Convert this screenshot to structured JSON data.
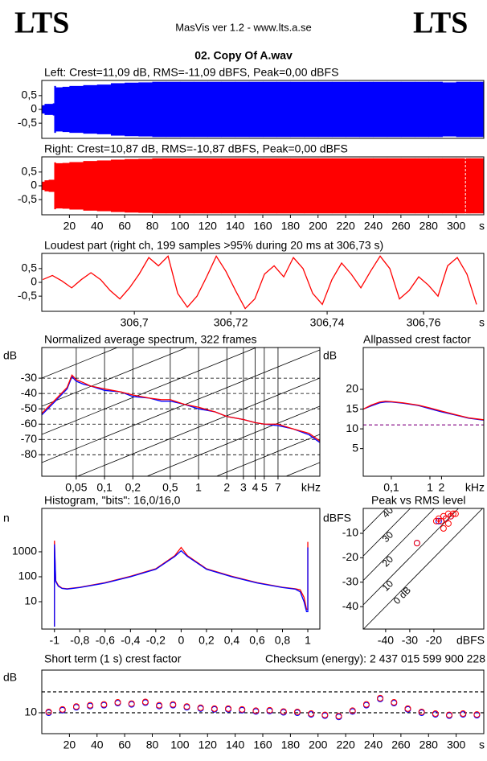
{
  "header": {
    "logo_left": "LTS",
    "logo_right": "LTS",
    "version": "MasVis ver 1.2 - www.lts.a.se",
    "file": "02. Copy Of A.wav"
  },
  "chart_data": [
    {
      "type": "waveform",
      "title": "Left: Crest=11,09 dB, RMS=-11,09 dBFS, Peak=0,00 dBFS",
      "color": "#0000ff",
      "x": [
        0,
        2,
        5,
        8,
        9,
        10,
        15,
        20,
        30,
        40,
        50,
        60,
        70,
        80,
        90,
        100,
        110,
        120,
        130,
        140,
        150,
        160,
        170,
        180,
        190,
        200,
        210,
        220,
        230,
        240,
        250,
        260,
        270,
        280,
        290,
        300,
        310
      ],
      "values": [
        0.15,
        0.2,
        0.2,
        0.22,
        0.85,
        0.8,
        0.82,
        0.85,
        0.88,
        0.9,
        0.95,
        0.97,
        0.98,
        1,
        1,
        1,
        1,
        1,
        1,
        1,
        1,
        1,
        1,
        1,
        1,
        1,
        1,
        1,
        1,
        1,
        1,
        1,
        1,
        1,
        0.98,
        1,
        1
      ],
      "xlim": [
        0,
        320
      ],
      "ylim": [
        -1.05,
        1.05
      ],
      "yticks": [
        {
          "value": 0.5,
          "label": "0,5"
        },
        0,
        {
          "value": -0.5,
          "label": "-0,5"
        }
      ]
    },
    {
      "type": "waveform",
      "title": "Right: Crest=10,87 dB, RMS=-10,87 dBFS, Peak=0,00 dBFS",
      "color": "#ff0000",
      "x": [
        0,
        2,
        5,
        8,
        9,
        10,
        15,
        20,
        30,
        40,
        50,
        60,
        70,
        80,
        90,
        100,
        110,
        120,
        130,
        140,
        150,
        160,
        170,
        180,
        190,
        200,
        210,
        220,
        230,
        240,
        250,
        260,
        270,
        280,
        290,
        300,
        310
      ],
      "values": [
        0.15,
        0.2,
        0.22,
        0.22,
        0.85,
        0.82,
        0.83,
        0.86,
        0.9,
        0.92,
        0.95,
        0.97,
        0.98,
        1,
        1,
        1,
        1,
        1,
        1,
        1,
        1,
        1,
        1,
        1,
        1,
        1,
        1,
        1,
        1,
        1,
        1,
        1,
        1,
        1,
        1,
        1,
        1
      ],
      "marker": 306.73,
      "xlim": [
        0,
        320
      ],
      "ylim": [
        -1.05,
        1.05
      ],
      "yticks": [
        {
          "value": 0.5,
          "label": "0,5"
        },
        0,
        {
          "value": -0.5,
          "label": "-0,5"
        }
      ],
      "xticks": [
        20,
        40,
        60,
        80,
        100,
        120,
        140,
        160,
        180,
        200,
        220,
        240,
        260,
        280,
        300
      ],
      "xlabel": "s"
    },
    {
      "type": "line",
      "title": "Loudest part (right ch, 199 samples >95% during 20 ms at 306,73 s)",
      "x": [
        306.681,
        306.683,
        306.685,
        306.687,
        306.689,
        306.691,
        306.693,
        306.695,
        306.697,
        306.699,
        306.701,
        306.703,
        306.705,
        306.707,
        306.709,
        306.711,
        306.713,
        306.715,
        306.717,
        306.719,
        306.721,
        306.723,
        306.725,
        306.727,
        306.729,
        306.731,
        306.733,
        306.735,
        306.737,
        306.739,
        306.741,
        306.743,
        306.745,
        306.747,
        306.749,
        306.751,
        306.753,
        306.755,
        306.757,
        306.759,
        306.761,
        306.763,
        306.765,
        306.767,
        306.769,
        306.771
      ],
      "series": [
        {
          "color": "#ff0000",
          "values": [
            0.1,
            0.25,
            0.05,
            -0.2,
            0.1,
            0.35,
            0.1,
            -0.3,
            -0.6,
            -0.2,
            0.3,
            0.9,
            0.6,
            0.95,
            -0.4,
            -0.9,
            -0.5,
            0.2,
            0.95,
            0.4,
            -0.3,
            -0.95,
            -0.6,
            0.3,
            0.6,
            0.2,
            0.9,
            0.5,
            -0.4,
            -0.8,
            0.1,
            0.7,
            0.3,
            -0.2,
            0.4,
            0.95,
            0.5,
            -0.6,
            -0.3,
            0.2,
            -0.1,
            -0.5,
            0.6,
            0.9,
            0.3,
            -0.8
          ]
        }
      ],
      "xlim": [
        306.6808,
        306.7725
      ],
      "ylim": [
        -1.05,
        1.05
      ],
      "yticks": [
        {
          "value": 0.5,
          "label": "0,5"
        },
        0,
        {
          "value": -0.5,
          "label": "-0,5"
        }
      ],
      "xticks": [
        {
          "value": 306.7,
          "label": "306,7"
        },
        {
          "value": 306.72,
          "label": "306,72"
        },
        {
          "value": 306.74,
          "label": "306,74"
        },
        {
          "value": 306.76,
          "label": "306,76"
        }
      ],
      "xlabel": "s"
    },
    {
      "type": "line",
      "title": "Normalized average spectrum, 322 frames",
      "ylabel": "dB",
      "xlabel": "kHz",
      "xlog": true,
      "grid": true,
      "xgrid": true,
      "x": [
        0.0215,
        0.03,
        0.04,
        0.045,
        0.05,
        0.06,
        0.07,
        0.1,
        0.15,
        0.2,
        0.3,
        0.4,
        0.5,
        0.7,
        1,
        1.5,
        2,
        3,
        4,
        5,
        7,
        10,
        15,
        19.5
      ],
      "series": [
        {
          "color": "#0000ff",
          "values": [
            -54,
            -45,
            -37,
            -29,
            -32,
            -34,
            -35,
            -38,
            -39,
            -42,
            -43,
            -45,
            -45,
            -47,
            -50,
            -52,
            -55,
            -57,
            -59,
            -60,
            -61,
            -63,
            -67,
            -72
          ]
        },
        {
          "color": "#ff0000",
          "values": [
            -53,
            -44,
            -36,
            -28,
            -31,
            -33,
            -35,
            -37,
            -39,
            -41,
            -43,
            -44,
            -44,
            -47,
            -49,
            -52,
            -55,
            -57,
            -59,
            -60,
            -60,
            -63,
            -66,
            -71
          ]
        }
      ],
      "xlim": [
        0.0215,
        19.5
      ],
      "ylim": [
        -94,
        -10
      ],
      "yticks": [
        -30,
        -40,
        -50,
        -60,
        -70,
        -80
      ],
      "xticks": [
        {
          "value": 0.05,
          "label": "0,05"
        },
        {
          "value": 0.1,
          "label": "0,1"
        },
        {
          "value": 0.2,
          "label": "0,2"
        },
        {
          "value": 0.5,
          "label": "0,5"
        },
        1,
        2,
        3,
        4,
        5,
        7
      ]
    },
    {
      "type": "line",
      "title": "Allpassed crest factor",
      "ylabel": "dB",
      "xlabel": "kHz",
      "xlog": true,
      "x": [
        0.0187,
        0.03,
        0.05,
        0.07,
        0.1,
        0.2,
        0.5,
        1,
        2,
        5,
        10,
        24.9
      ],
      "series": [
        {
          "color": "#0000ff",
          "values": [
            15,
            15.8,
            16.6,
            16.8,
            16.8,
            16.5,
            15.9,
            15.1,
            14.3,
            13.4,
            12.7,
            12.2
          ]
        },
        {
          "color": "#ff0000",
          "values": [
            15,
            16,
            16.8,
            17,
            16.9,
            16.6,
            16,
            15.3,
            14.5,
            13.5,
            12.8,
            12.3
          ]
        }
      ],
      "ref_lines": [
        11
      ],
      "ref_color": "#800080",
      "xlim": [
        0.0187,
        24.9
      ],
      "ylim": [
        -2,
        30.6
      ],
      "yticks": [
        20,
        15,
        10,
        5
      ],
      "xticks": [
        {
          "value": 0.1,
          "label": "0,1"
        },
        1,
        2
      ]
    },
    {
      "type": "line",
      "title": "Histogram, \"bits\": 16,0/16,0",
      "ylabel": "n",
      "ylog": true,
      "x": [
        -1,
        -1,
        -0.99,
        -0.97,
        -0.94,
        -0.9,
        -0.8,
        -0.6,
        -0.4,
        -0.2,
        -0.05,
        0,
        0.05,
        0.2,
        0.4,
        0.6,
        0.8,
        0.9,
        0.94,
        0.97,
        0.99,
        1,
        1
      ],
      "series": [
        {
          "color": "#ff0000",
          "values": [
            1,
            2800,
            70,
            45,
            35,
            33,
            38,
            58,
            105,
            210,
            700,
            1500,
            700,
            210,
            105,
            58,
            38,
            33,
            30,
            15,
            5,
            5,
            2500
          ]
        },
        {
          "color": "#0000ff",
          "values": [
            1,
            2000,
            65,
            42,
            34,
            32,
            37,
            56,
            100,
            200,
            650,
            1100,
            650,
            200,
            100,
            56,
            37,
            32,
            25,
            10,
            4,
            4,
            1500
          ]
        }
      ],
      "xlim": [
        -1.1,
        1.095
      ],
      "ylim": [
        0.8,
        55000
      ],
      "yticks": [
        1000,
        100,
        10
      ],
      "xticks": [
        -1,
        {
          "value": -0.8,
          "label": "-0,8"
        },
        {
          "value": -0.6,
          "label": "-0,6"
        },
        {
          "value": -0.4,
          "label": "-0,4"
        },
        {
          "value": -0.2,
          "label": "-0,2"
        },
        0,
        {
          "value": 0.2,
          "label": "0,2"
        },
        {
          "value": 0.4,
          "label": "0,4"
        },
        {
          "value": 0.6,
          "label": "0,6"
        },
        {
          "value": 0.8,
          "label": "0,8"
        },
        1
      ]
    },
    {
      "type": "scatter",
      "title": "Peak vs RMS level",
      "ylabel": "dBFS",
      "xlabel": "dBFS",
      "diagonals": [
        {
          "value": 0,
          "label": "0 dB"
        },
        10,
        20,
        30,
        40
      ],
      "series": [
        {
          "color": "#0000ff",
          "x": [
            -27,
            -18,
            -15,
            -13
          ],
          "values": [
            -14,
            -5,
            -4,
            -3
          ]
        },
        {
          "color": "#ff0000",
          "x": [
            -27,
            -19,
            -18,
            -17,
            -16,
            -15,
            -14,
            -13,
            -12,
            -11,
            -14,
            -16
          ],
          "values": [
            -14,
            -5,
            -4,
            -5,
            -3,
            -4,
            -2,
            -3,
            -2,
            -2,
            -6,
            -8
          ]
        }
      ],
      "xlim": [
        -49.3,
        0.7
      ],
      "ylim": [
        -49.2,
        0.2
      ],
      "yticks": [
        -10,
        -20,
        -30,
        -40
      ],
      "xticks": [
        -40,
        -30,
        -20
      ]
    },
    {
      "type": "scatter",
      "title": "Short term (1 s) crest factor",
      "annotation": "Checksum (energy):  2 437 015 599 900 228",
      "ylabel": "dB",
      "xlabel": "s",
      "ref_lines": [
        10,
        15
      ],
      "ref_color": "#000000",
      "x": [
        5,
        15,
        25,
        35,
        45,
        55,
        65,
        75,
        85,
        95,
        105,
        115,
        125,
        135,
        145,
        155,
        165,
        175,
        185,
        195,
        205,
        215,
        225,
        235,
        245,
        255,
        265,
        275,
        285,
        295,
        305,
        315
      ],
      "series": [
        {
          "color": "#0000ff",
          "values": [
            10,
            10.6,
            11.3,
            11.6,
            11.8,
            12.3,
            12,
            12.4,
            11.6,
            11.8,
            11.3,
            11,
            10.8,
            10.8,
            10.6,
            10.3,
            10.4,
            10.1,
            10,
            9.6,
            9.3,
            9,
            10.3,
            11.8,
            13.3,
            12.3,
            10.8,
            10,
            9.6,
            9.3,
            9.6,
            9.4
          ]
        },
        {
          "color": "#ff0000",
          "values": [
            10.2,
            10.8,
            11.5,
            11.8,
            12,
            12.5,
            12.2,
            12.6,
            11.8,
            12,
            11.5,
            11.2,
            11,
            11,
            10.8,
            10.5,
            10.6,
            10.3,
            10.2,
            9.8,
            9.5,
            9.2,
            10.5,
            12,
            13.5,
            12.5,
            11,
            10.2,
            9.8,
            9.5,
            9.8,
            9.6
          ]
        }
      ],
      "xlim": [
        0,
        320
      ],
      "ylim": [
        5,
        20.2
      ],
      "yticks": [
        10
      ],
      "xticks": [
        20,
        40,
        60,
        80,
        100,
        120,
        140,
        160,
        180,
        200,
        220,
        240,
        260,
        280,
        300
      ]
    }
  ]
}
